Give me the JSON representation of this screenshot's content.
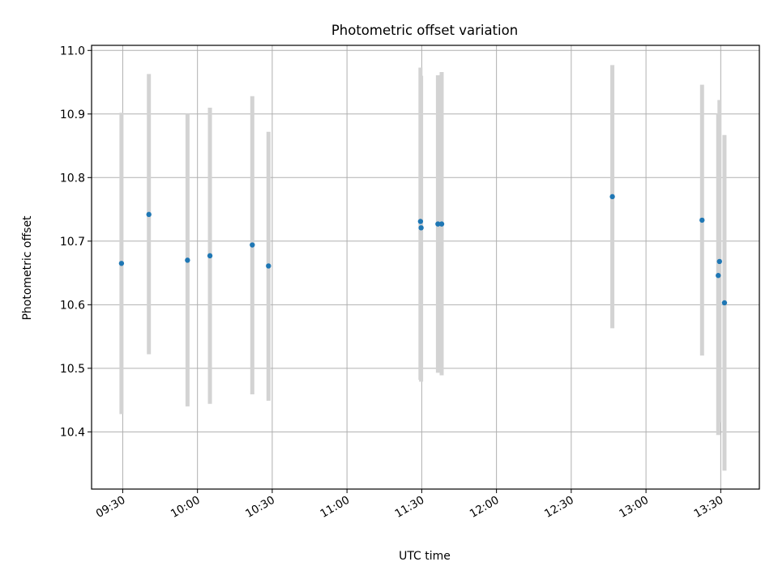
{
  "chart_data": {
    "type": "scatter",
    "title": "Photometric offset variation",
    "xlabel": "UTC time",
    "ylabel": "Photometric offset",
    "x_ticks": [
      "09:30",
      "10:00",
      "10:30",
      "11:00",
      "11:30",
      "12:00",
      "12:30",
      "13:00",
      "13:30"
    ],
    "xlim": [
      "09:17:30",
      "13:45:30"
    ],
    "ylim": [
      10.31,
      11.008
    ],
    "y_ticks": [
      10.4,
      10.5,
      10.6,
      10.7,
      10.8,
      10.9,
      11.0
    ],
    "y_tick_labels": [
      "10.4",
      "10.5",
      "10.6",
      "10.7",
      "10.8",
      "10.9",
      "11.0"
    ],
    "grid": true,
    "point_color": "#1f77b4",
    "errorbar_color": "#d3d3d3",
    "points": [
      {
        "time": "09:29:30",
        "value": 10.665,
        "low": 10.428,
        "high": 10.902
      },
      {
        "time": "09:40:30",
        "value": 10.742,
        "low": 10.522,
        "high": 10.963
      },
      {
        "time": "09:56:00",
        "value": 10.67,
        "low": 10.44,
        "high": 10.9
      },
      {
        "time": "10:05:00",
        "value": 10.677,
        "low": 10.444,
        "high": 10.91
      },
      {
        "time": "10:22:00",
        "value": 10.694,
        "low": 10.459,
        "high": 10.928
      },
      {
        "time": "10:28:30",
        "value": 10.661,
        "low": 10.449,
        "high": 10.872
      },
      {
        "time": "11:29:30",
        "value": 10.731,
        "low": 10.482,
        "high": 10.973
      },
      {
        "time": "11:29:45",
        "value": 10.721,
        "low": 10.479,
        "high": 10.96
      },
      {
        "time": "11:36:30",
        "value": 10.727,
        "low": 10.493,
        "high": 10.961
      },
      {
        "time": "11:38:00",
        "value": 10.727,
        "low": 10.489,
        "high": 10.966
      },
      {
        "time": "12:46:30",
        "value": 10.77,
        "low": 10.563,
        "high": 10.977
      },
      {
        "time": "13:22:30",
        "value": 10.733,
        "low": 10.52,
        "high": 10.946
      },
      {
        "time": "13:29:00",
        "value": 10.646,
        "low": 10.395,
        "high": 10.9
      },
      {
        "time": "13:29:30",
        "value": 10.668,
        "low": 10.415,
        "high": 10.922
      },
      {
        "time": "13:31:30",
        "value": 10.603,
        "low": 10.339,
        "high": 10.867
      }
    ]
  }
}
